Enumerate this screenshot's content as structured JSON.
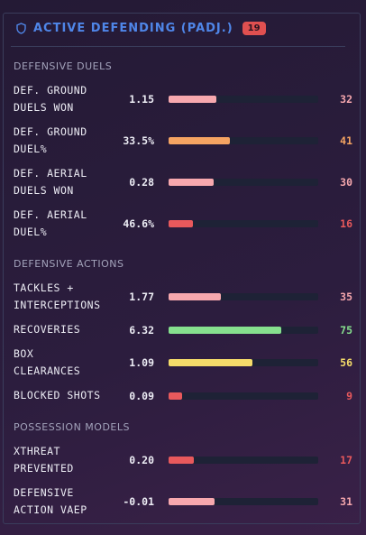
{
  "header": {
    "title": "ACTIVE DEFENDING (PADJ.)",
    "badge": "19"
  },
  "sections": [
    {
      "title": "DEFENSIVE DUELS",
      "rows": [
        {
          "label": "DEF. GROUND DUELS WON",
          "value": "1.15",
          "percentile": 32,
          "color": "#f7a8ae"
        },
        {
          "label": "DEF. GROUND DUEL%",
          "value": "33.5%",
          "percentile": 41,
          "color": "#f5a462"
        },
        {
          "label": "DEF. AERIAL DUELS WON",
          "value": "0.28",
          "percentile": 30,
          "color": "#f7a8ae"
        },
        {
          "label": "DEF. AERIAL DUEL%",
          "value": "46.6%",
          "percentile": 16,
          "color": "#e8595c"
        }
      ]
    },
    {
      "title": "DEFENSIVE ACTIONS",
      "rows": [
        {
          "label": "TACKLES + INTERCEPTIONS",
          "value": "1.77",
          "percentile": 35,
          "color": "#f7a8ae"
        },
        {
          "label": "RECOVERIES",
          "value": "6.32",
          "percentile": 75,
          "color": "#86e08e"
        },
        {
          "label": "BOX CLEARANCES",
          "value": "1.09",
          "percentile": 56,
          "color": "#f5dc6a"
        },
        {
          "label": "BLOCKED SHOTS",
          "value": "0.09",
          "percentile": 9,
          "color": "#e8595c"
        }
      ]
    },
    {
      "title": "POSSESSION MODELS",
      "rows": [
        {
          "label": "XTHREAT PREVENTED",
          "value": "0.20",
          "percentile": 17,
          "color": "#e8595c"
        },
        {
          "label": "DEFENSIVE ACTION VAEP",
          "value": "-0.01",
          "percentile": 31,
          "color": "#f7a8ae"
        }
      ]
    }
  ]
}
